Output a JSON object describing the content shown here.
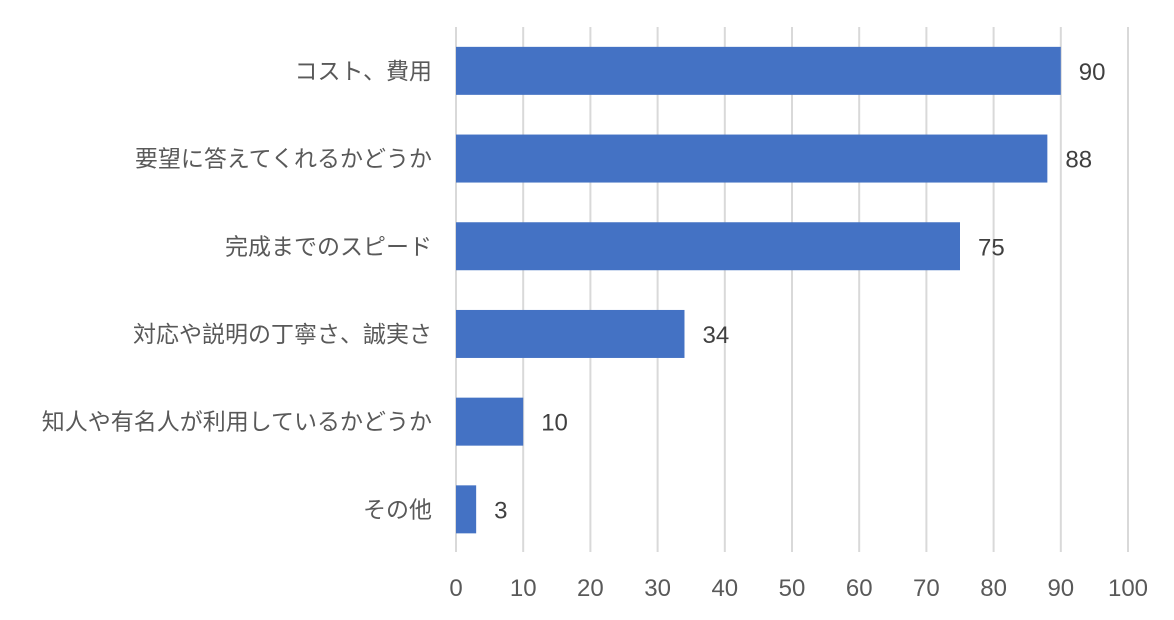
{
  "chart_data": {
    "type": "bar",
    "orientation": "horizontal",
    "title": "",
    "xlabel": "",
    "ylabel": "",
    "categories": [
      "コスト、費用",
      "要望に答えてくれるかどうか",
      "完成までのスピード",
      "対応や説明の丁寧さ、誠実さ",
      "知人や有名人が利用しているかどうか",
      "その他"
    ],
    "values": [
      90,
      88,
      75,
      34,
      10,
      3
    ],
    "xlim": [
      0,
      100
    ],
    "xticks": [
      0,
      10,
      20,
      30,
      40,
      50,
      60,
      70,
      80,
      90,
      100
    ],
    "grid": "vertical",
    "legend": "none",
    "data_labels": true,
    "colors": {
      "bar": "#4472c4",
      "grid": "#d9d9d9",
      "text": "#595959"
    }
  }
}
